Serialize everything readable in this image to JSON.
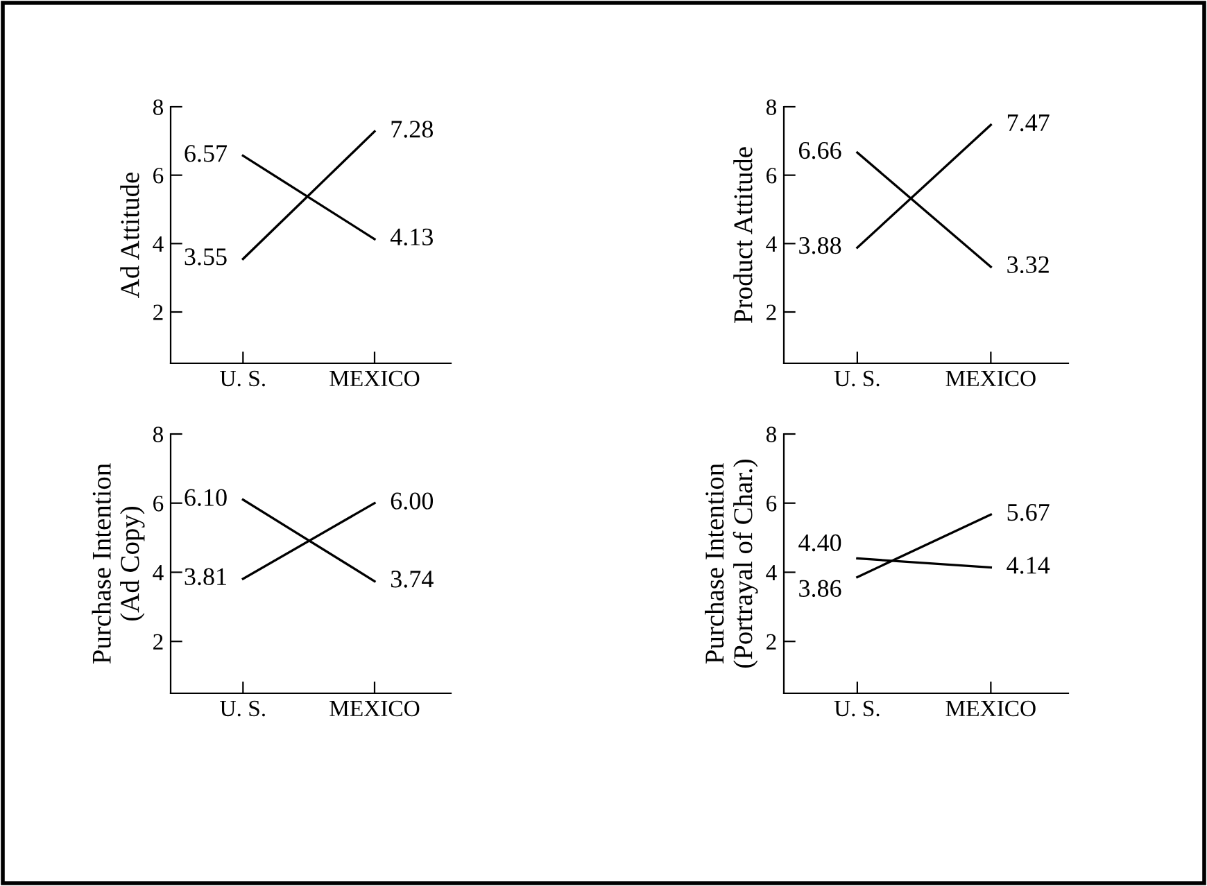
{
  "chart_data": [
    {
      "type": "line",
      "ylabel": "Ad Attitude",
      "categories": [
        "U. S.",
        "MEXICO"
      ],
      "ylim": [
        0.5,
        8
      ],
      "yticks": [
        2,
        4,
        6,
        8
      ],
      "marker": "none",
      "line_style": "solid",
      "series": [
        {
          "color": "#000000",
          "values": [
            6.57,
            4.13
          ],
          "value_labels": [
            "6.57",
            "4.13"
          ]
        },
        {
          "color": "#000000",
          "values": [
            3.55,
            7.28
          ],
          "value_labels": [
            "3.55",
            "7.28"
          ]
        }
      ]
    },
    {
      "type": "line",
      "ylabel": "Product Attitude",
      "categories": [
        "U. S.",
        "MEXICO"
      ],
      "ylim": [
        0.5,
        8
      ],
      "yticks": [
        2,
        4,
        6,
        8
      ],
      "marker": "none",
      "line_style": "solid",
      "series": [
        {
          "color": "#000000",
          "values": [
            6.66,
            3.32
          ],
          "value_labels": [
            "6.66",
            "3.32"
          ]
        },
        {
          "color": "#000000",
          "values": [
            3.88,
            7.47
          ],
          "value_labels": [
            "3.88",
            "7.47"
          ]
        }
      ]
    },
    {
      "type": "line",
      "ylabel": "Purchase Intention\n(Ad Copy)",
      "categories": [
        "U. S.",
        "MEXICO"
      ],
      "ylim": [
        0.5,
        8
      ],
      "yticks": [
        2,
        4,
        6,
        8
      ],
      "marker": "none",
      "line_style": "solid",
      "series": [
        {
          "color": "#000000",
          "values": [
            6.1,
            3.74
          ],
          "value_labels": [
            "6.10",
            "3.74"
          ]
        },
        {
          "color": "#000000",
          "values": [
            3.81,
            6.0
          ],
          "value_labels": [
            "3.81",
            "6.00"
          ]
        }
      ]
    },
    {
      "type": "line",
      "ylabel": "Purchase Intention\n(Portrayal of Char.)",
      "categories": [
        "U. S.",
        "MEXICO"
      ],
      "ylim": [
        0.5,
        8
      ],
      "yticks": [
        2,
        4,
        6,
        8
      ],
      "marker": "none",
      "line_style": "solid",
      "series": [
        {
          "color": "#000000",
          "values": [
            4.4,
            4.14
          ],
          "value_labels": [
            "4.40",
            "4.14"
          ]
        },
        {
          "color": "#000000",
          "values": [
            3.86,
            5.67
          ],
          "value_labels": [
            "3.86",
            "5.67"
          ]
        }
      ]
    }
  ]
}
